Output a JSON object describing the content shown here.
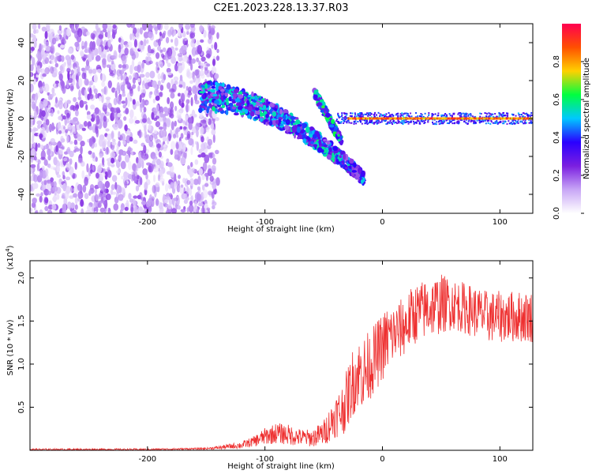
{
  "title": "C2E1.2023.228.13.37.R03",
  "chart_data": [
    {
      "type": "heatmap",
      "name": "spectrogram",
      "xlabel": "Height of straight line (km)",
      "ylabel": "Frequency (Hz)",
      "xlim": [
        -300,
        128
      ],
      "ylim": [
        -50,
        50
      ],
      "xticks": [
        -200,
        -100,
        0,
        100
      ],
      "yticks": [
        -40,
        -20,
        0,
        20,
        40
      ],
      "grid": false,
      "colorbar": {
        "label": "Normalized spectral amplitude",
        "range": [
          0,
          1
        ],
        "ticks": [
          0.0,
          0.2,
          0.4,
          0.6,
          0.8
        ],
        "colors": [
          "#ffffff",
          "#c8a6f6",
          "#7b1fe0",
          "#2a00ff",
          "#00c8ff",
          "#00ff40",
          "#ffd000",
          "#ff5000",
          "#ff0050"
        ]
      },
      "regions": [
        {
          "description": "broadband noise",
          "x_range": [
            -300,
            -150
          ],
          "freq_range": [
            -50,
            50
          ],
          "amplitude": 0.12
        },
        {
          "description": "converging signal",
          "x_range": [
            -155,
            -15
          ],
          "freq_center": [
            12,
            -32
          ],
          "amplitude": 0.45
        },
        {
          "description": "secondary branch",
          "x_range": [
            -58,
            -35
          ],
          "freq_center": [
            14,
            -12
          ],
          "amplitude": 0.5
        },
        {
          "description": "steady carrier",
          "x_range": [
            -40,
            128
          ],
          "freq_center": [
            0,
            0
          ],
          "amplitude": 0.9
        }
      ]
    },
    {
      "type": "line",
      "name": "snr",
      "xlabel": "Height of straight line (km)",
      "ylabel": "SNR (10 * v/v)",
      "yscale_label": "(x10",
      "yscale_exp": "4",
      "xlim": [
        -300,
        128
      ],
      "ylim": [
        0,
        2.2
      ],
      "xticks": [
        -200,
        -100,
        0,
        100
      ],
      "yticks": [
        0.5,
        1.0,
        1.5,
        2.0
      ],
      "color": "#ee3030",
      "grid": false,
      "series": [
        {
          "name": "SNR",
          "x": [
            -300,
            -250,
            -200,
            -150,
            -140,
            -120,
            -110,
            -100,
            -90,
            -80,
            -70,
            -60,
            -50,
            -45,
            -40,
            -35,
            -30,
            -25,
            -20,
            -15,
            -10,
            -5,
            0,
            5,
            10,
            15,
            20,
            25,
            30,
            40,
            50,
            60,
            70,
            80,
            90,
            100,
            110,
            120,
            128
          ],
          "values": [
            0.01,
            0.01,
            0.01,
            0.02,
            0.03,
            0.06,
            0.1,
            0.16,
            0.2,
            0.18,
            0.15,
            0.14,
            0.2,
            0.3,
            0.4,
            0.45,
            0.6,
            0.8,
            0.9,
            0.9,
            1.0,
            1.1,
            1.2,
            1.3,
            1.35,
            1.4,
            1.45,
            1.55,
            1.6,
            1.65,
            1.7,
            1.7,
            1.65,
            1.6,
            1.55,
            1.55,
            1.55,
            1.55,
            1.55
          ],
          "noise_amplitude": [
            0.01,
            0.01,
            0.01,
            0.01,
            0.02,
            0.04,
            0.06,
            0.1,
            0.12,
            0.12,
            0.1,
            0.1,
            0.15,
            0.2,
            0.25,
            0.3,
            0.35,
            0.4,
            0.4,
            0.45,
            0.4,
            0.4,
            0.4,
            0.4,
            0.35,
            0.35,
            0.35,
            0.35,
            0.35,
            0.35,
            0.35,
            0.3,
            0.3,
            0.3,
            0.3,
            0.3,
            0.3,
            0.3,
            0.3
          ]
        }
      ]
    }
  ]
}
